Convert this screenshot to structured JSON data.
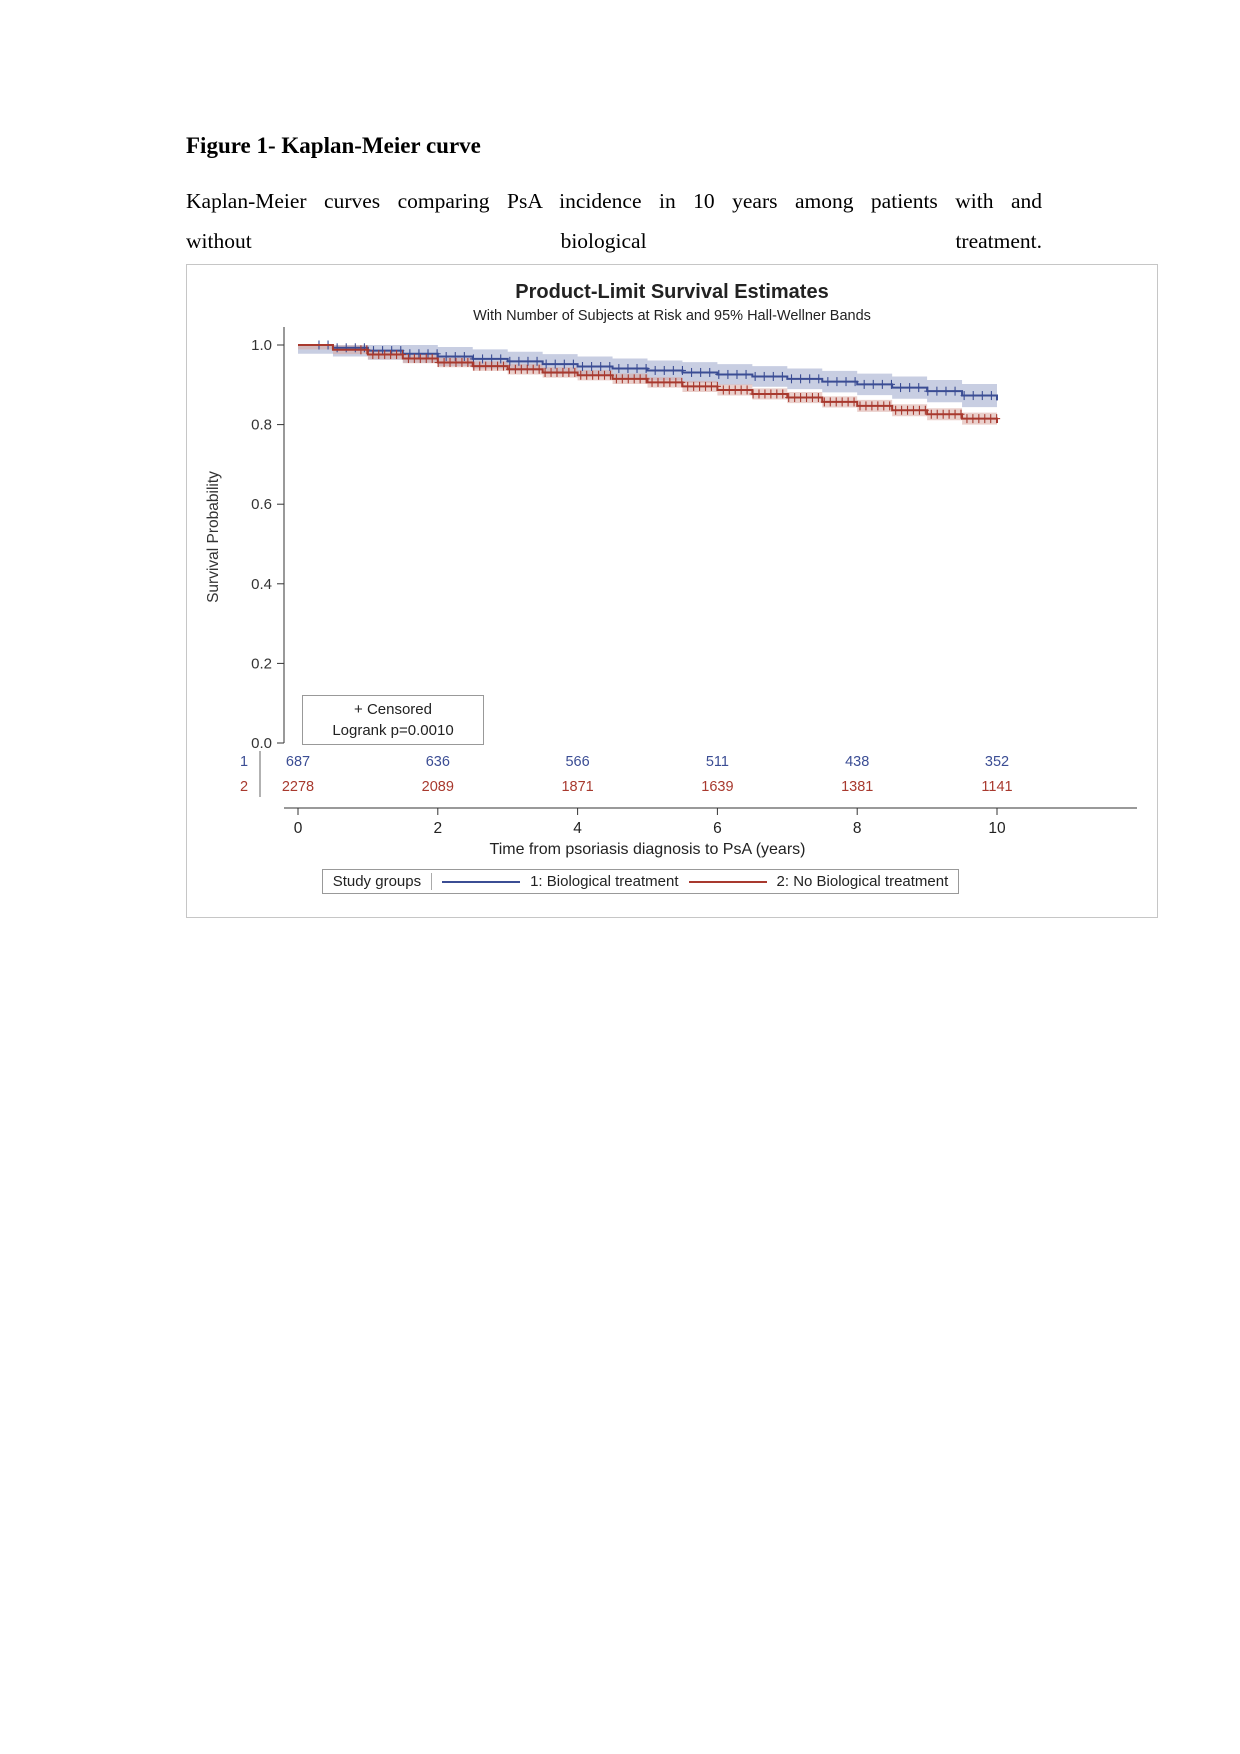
{
  "page": {
    "figure_label": "Figure 1- Kaplan-Meier curve",
    "caption_line1": "Kaplan-Meier curves comparing PsA incidence in 10 years among patients with and",
    "caption_line2_words": [
      "without",
      "biological",
      "treatment."
    ]
  },
  "chart_data": {
    "type": "line",
    "chart_kind": "kaplan-meier-survival",
    "title": "Product-Limit Survival Estimates",
    "subtitle": "With Number of Subjects at Risk and 95% Hall-Wellner Bands",
    "xlabel": "Time from psoriasis diagnosis to PsA (years)",
    "ylabel": "Survival Probability",
    "xlim": [
      0,
      10
    ],
    "ylim": [
      0.0,
      1.0
    ],
    "x_ticks": [
      0,
      2,
      4,
      6,
      8,
      10
    ],
    "y_ticks": [
      "0.0",
      "0.2",
      "0.4",
      "0.6",
      "0.8",
      "1.0"
    ],
    "grid": false,
    "legend_title": "Study groups",
    "censored_label": "+ Censored",
    "logrank_label": "Logrank p=0.0010",
    "at_risk_times": [
      0,
      2,
      4,
      6,
      8,
      10
    ],
    "series": [
      {
        "id": "1",
        "name": "1: Biological treatment",
        "color": "#3B4D94",
        "band_color": "#9AA5CB",
        "x": [
          0,
          0.5,
          1,
          1.5,
          2,
          2.5,
          3,
          3.5,
          4,
          4.5,
          5,
          5.5,
          6,
          6.5,
          7,
          7.5,
          8,
          8.5,
          9,
          9.5,
          10
        ],
        "survival": [
          1.0,
          0.993,
          0.986,
          0.978,
          0.971,
          0.965,
          0.959,
          0.952,
          0.946,
          0.941,
          0.936,
          0.931,
          0.926,
          0.921,
          0.915,
          0.908,
          0.901,
          0.893,
          0.884,
          0.873,
          0.861
        ],
        "ci_halfwidth": [
          0.022,
          0.022,
          0.023,
          0.023,
          0.024,
          0.024,
          0.024,
          0.025,
          0.025,
          0.025,
          0.025,
          0.026,
          0.026,
          0.026,
          0.026,
          0.027,
          0.027,
          0.028,
          0.028,
          0.029,
          0.03
        ],
        "at_risk": [
          687,
          636,
          566,
          511,
          438,
          352
        ]
      },
      {
        "id": "2",
        "name": "2: No Biological treatment",
        "color": "#A8392E",
        "band_color": "#D9A7A0",
        "x": [
          0,
          0.5,
          1,
          1.5,
          2,
          2.5,
          3,
          3.5,
          4,
          4.5,
          5,
          5.5,
          6,
          6.5,
          7,
          7.5,
          8,
          8.5,
          9,
          9.5,
          10
        ],
        "survival": [
          1.0,
          0.988,
          0.976,
          0.966,
          0.956,
          0.947,
          0.939,
          0.931,
          0.924,
          0.915,
          0.906,
          0.896,
          0.887,
          0.877,
          0.868,
          0.857,
          0.847,
          0.836,
          0.826,
          0.815,
          0.804
        ],
        "ci_halfwidth": [
          0.011,
          0.011,
          0.012,
          0.012,
          0.012,
          0.012,
          0.013,
          0.013,
          0.013,
          0.013,
          0.013,
          0.014,
          0.014,
          0.014,
          0.014,
          0.014,
          0.015,
          0.015,
          0.015,
          0.015,
          0.016
        ],
        "at_risk": [
          2278,
          2089,
          1871,
          1639,
          1381,
          1141
        ]
      }
    ]
  },
  "style": {
    "axis_color": "#333333",
    "chart_border_color": "#c6c6c6"
  }
}
